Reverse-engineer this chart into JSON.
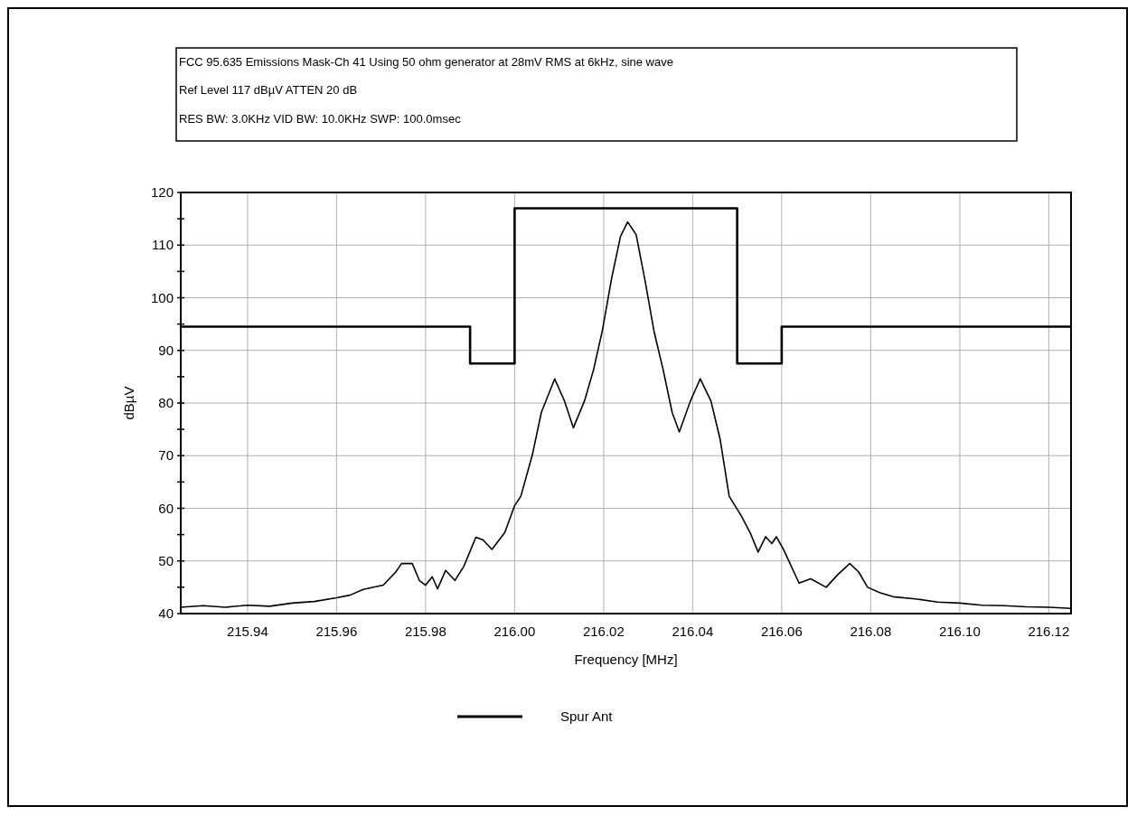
{
  "chart_data": {
    "type": "line",
    "title": "FCC 95.635 Emissions Mask-Ch 41 Using 50 ohm generator at 28mV RMS at 6kHz, sine wave",
    "annotations": [
      "Ref Level 117 dBµV    ATTEN 20 dB",
      "RES BW: 3.0KHz  VID BW: 10.0KHz  SWP: 100.0msec"
    ],
    "xlabel": "Frequency [MHz]",
    "ylabel": "dBµV",
    "xlim": [
      215.925,
      216.125
    ],
    "xticks": [
      {
        "value": 215.94,
        "label": "215.94"
      },
      {
        "value": 215.96,
        "label": "215.96"
      },
      {
        "value": 215.98,
        "label": "215.98"
      },
      {
        "value": 216.0,
        "label": "216.00"
      },
      {
        "value": 216.02,
        "label": "216.02"
      },
      {
        "value": 216.04,
        "label": "216.04"
      },
      {
        "value": 216.06,
        "label": "216.06"
      },
      {
        "value": 216.08,
        "label": "216.08"
      },
      {
        "value": 216.1,
        "label": "216.10"
      },
      {
        "value": 216.12,
        "label": "216.12"
      }
    ],
    "ylim": [
      40,
      120
    ],
    "yticks": [
      40,
      {
        "value": 45,
        "label": null
      },
      50,
      {
        "value": 55,
        "label": null
      },
      60,
      {
        "value": 65,
        "label": null
      },
      70,
      {
        "value": 75,
        "label": null
      },
      80,
      {
        "value": 85,
        "label": null
      },
      90,
      {
        "value": 95,
        "label": null
      },
      100,
      {
        "value": 105,
        "label": null
      },
      110,
      {
        "value": 115,
        "label": null
      },
      120
    ],
    "grid": true,
    "legend": "bottom",
    "marker": "none",
    "line_style": "solid",
    "series": [
      {
        "color": "#000000",
        "x": [
          215.925,
          215.99,
          215.99,
          216.0,
          216.0,
          216.05,
          216.05,
          216.06,
          216.06,
          216.125
        ],
        "values": [
          94.5,
          94.5,
          87.5,
          87.5,
          117,
          117,
          87.5,
          87.5,
          94.5,
          94.5
        ]
      },
      {
        "name": "Spur Ant",
        "color": "#000000",
        "x": [
          215.925,
          215.93,
          215.935,
          215.94,
          215.945,
          215.95,
          215.955,
          215.96,
          215.963,
          215.966,
          215.9705,
          215.9733,
          215.9746,
          215.977,
          215.9786,
          215.98,
          215.9815,
          215.9827,
          215.9845,
          215.9866,
          215.9886,
          215.9913,
          215.9929,
          215.9949,
          215.9978,
          216.0,
          216.0014,
          216.004,
          216.006,
          216.009,
          216.0112,
          216.0132,
          216.0157,
          216.0177,
          216.0197,
          216.0218,
          216.0238,
          216.0254,
          216.0273,
          216.0293,
          216.0313,
          216.0334,
          216.0354,
          216.037,
          216.0395,
          216.0417,
          216.0441,
          216.0462,
          216.0482,
          216.0509,
          216.0529,
          216.0547,
          216.0564,
          216.0578,
          216.0588,
          216.0604,
          216.0639,
          216.0665,
          216.07,
          216.0726,
          216.0753,
          216.0773,
          216.0793,
          216.082,
          216.085,
          216.09,
          216.095,
          216.1,
          216.105,
          216.11,
          216.115,
          216.12,
          216.125
        ],
        "values": [
          41.2,
          41.5,
          41.2,
          41.6,
          41.4,
          42,
          42.3,
          43,
          43.5,
          44.6,
          45.4,
          47.9,
          49.5,
          49.5,
          46.3,
          45.4,
          47,
          44.7,
          48.2,
          46.3,
          49,
          54.5,
          54,
          52.2,
          55.4,
          60.5,
          62.3,
          70.2,
          78.2,
          84.6,
          80.4,
          75.3,
          80.4,
          86.2,
          93.7,
          103.7,
          111.7,
          114.4,
          112,
          103.3,
          93.7,
          86.2,
          78.2,
          74.5,
          80.4,
          84.6,
          80.4,
          73,
          62.3,
          58.6,
          55.4,
          51.7,
          54.6,
          53.3,
          54.6,
          52.2,
          45.8,
          46.6,
          45,
          47.4,
          49.5,
          47.9,
          45,
          44,
          43.2,
          42.8,
          42.2,
          42,
          41.6,
          41.5,
          41.3,
          41.2,
          41
        ]
      }
    ]
  }
}
